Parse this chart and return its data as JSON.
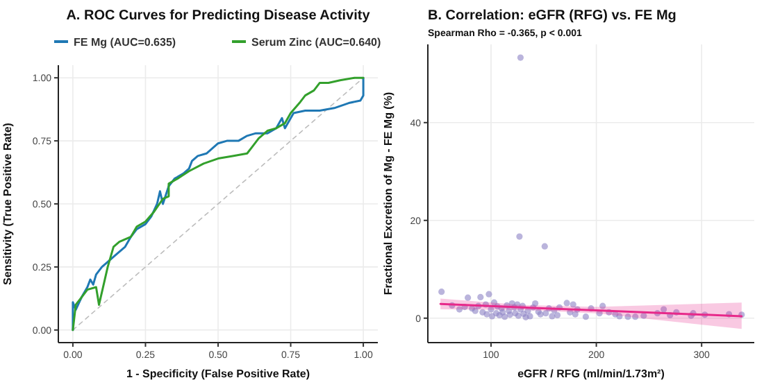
{
  "chart_data": [
    {
      "type": "line",
      "title": "A. ROC Curves for Predicting Disease Activity",
      "xlabel": "1 - Specificity (False Positive Rate)",
      "ylabel": "Sensitivity (True Positive Rate)",
      "xlim": [
        -0.05,
        1.05
      ],
      "ylim": [
        -0.05,
        1.05
      ],
      "xticks": [
        {
          "value": 0,
          "label": "0.00"
        },
        {
          "value": 0.25,
          "label": "0.25"
        },
        {
          "value": 0.5,
          "label": "0.50"
        },
        {
          "value": 0.75,
          "label": "0.75"
        },
        {
          "value": 1,
          "label": "1.00"
        }
      ],
      "yticks": [
        {
          "value": 0,
          "label": "0.00"
        },
        {
          "value": 0.25,
          "label": "0.25"
        },
        {
          "value": 0.5,
          "label": "0.50"
        },
        {
          "value": 0.75,
          "label": "0.75"
        },
        {
          "value": 1,
          "label": "1.00"
        }
      ],
      "grid": true,
      "legend": "top",
      "series": [
        {
          "type": "line",
          "color": "#bdbdbd",
          "line_style": "dashed",
          "x": [
            0,
            1
          ],
          "values": [
            0,
            1
          ]
        },
        {
          "name": "FE Mg (AUC=0.635)",
          "color": "#1f78b4",
          "x": [
            0,
            0,
            0.01,
            0.03,
            0.05,
            0.06,
            0.07,
            0.08,
            0.1,
            0.12,
            0.15,
            0.18,
            0.2,
            0.22,
            0.25,
            0.27,
            0.29,
            0.3,
            0.31,
            0.33,
            0.35,
            0.38,
            0.4,
            0.41,
            0.43,
            0.46,
            0.5,
            0.53,
            0.57,
            0.6,
            0.63,
            0.67,
            0.7,
            0.72,
            0.73,
            0.76,
            0.8,
            0.85,
            0.9,
            0.95,
            0.99,
            1,
            1
          ],
          "values": [
            0,
            0.11,
            0.08,
            0.13,
            0.17,
            0.2,
            0.18,
            0.22,
            0.25,
            0.27,
            0.3,
            0.33,
            0.37,
            0.4,
            0.42,
            0.45,
            0.5,
            0.55,
            0.5,
            0.57,
            0.6,
            0.62,
            0.64,
            0.67,
            0.69,
            0.7,
            0.74,
            0.75,
            0.75,
            0.77,
            0.78,
            0.78,
            0.8,
            0.84,
            0.8,
            0.86,
            0.87,
            0.87,
            0.88,
            0.9,
            0.91,
            0.93,
            1
          ]
        },
        {
          "name": "Serum Zinc (AUC=0.640)",
          "color": "#33a02c",
          "x": [
            0,
            0.01,
            0.03,
            0.05,
            0.08,
            0.09,
            0.11,
            0.12,
            0.14,
            0.16,
            0.2,
            0.22,
            0.25,
            0.28,
            0.31,
            0.33,
            0.33,
            0.36,
            0.4,
            0.45,
            0.5,
            0.55,
            0.6,
            0.62,
            0.64,
            0.67,
            0.7,
            0.73,
            0.75,
            0.78,
            0.8,
            0.83,
            0.85,
            0.88,
            0.92,
            0.97,
            1
          ],
          "values": [
            0,
            0.1,
            0.13,
            0.16,
            0.17,
            0.1,
            0.2,
            0.25,
            0.33,
            0.35,
            0.37,
            0.41,
            0.43,
            0.47,
            0.52,
            0.53,
            0.58,
            0.6,
            0.63,
            0.66,
            0.68,
            0.69,
            0.7,
            0.73,
            0.76,
            0.79,
            0.8,
            0.82,
            0.86,
            0.9,
            0.93,
            0.95,
            0.98,
            0.98,
            0.99,
            1,
            1
          ]
        }
      ]
    },
    {
      "type": "scatter",
      "title": "B. Correlation: eGFR (RFG) vs. FE Mg",
      "subtitle": "Spearman Rho = -0.365, p < 0.001",
      "xlabel": "eGFR / RFG (ml/min/1.73m²)",
      "ylabel": "Fractional Excretion of Mg - FE Mg (%)",
      "xlim": [
        40,
        350
      ],
      "ylim": [
        -5,
        56
      ],
      "xticks": [
        100,
        200,
        300
      ],
      "yticks": [
        0,
        20,
        40
      ],
      "grid": true,
      "series": [
        {
          "marker": "circle",
          "color": "#8c82c4",
          "x": [
            53,
            63,
            70,
            75,
            78,
            82,
            85,
            88,
            90,
            92,
            95,
            96,
            98,
            100,
            101,
            103,
            105,
            106,
            108,
            110,
            111,
            113,
            115,
            117,
            118,
            120,
            122,
            123,
            125,
            126,
            127,
            128,
            128,
            130,
            131,
            133,
            135,
            137,
            140,
            142,
            145,
            147,
            151,
            152,
            155,
            158,
            160,
            163,
            165,
            172,
            175,
            178,
            180,
            182,
            190,
            195,
            203,
            206,
            212,
            218,
            222,
            230,
            237,
            245,
            258,
            264,
            270,
            276,
            290,
            292,
            303,
            326,
            338
          ],
          "values": [
            5.4,
            2.6,
            1.8,
            2.3,
            4.2,
            2.0,
            1.5,
            2.5,
            4.3,
            1.2,
            2.8,
            0.8,
            4.9,
            1.8,
            0.4,
            3.2,
            1.0,
            2.4,
            0.6,
            2.0,
            1.2,
            0.3,
            2.6,
            1.5,
            0.7,
            3.0,
            2.2,
            1.0,
            2.8,
            0.5,
            16.7,
            53.3,
            1.8,
            2.5,
            0.9,
            0.2,
            1.5,
            0.4,
            2.2,
            3.0,
            1.3,
            0.8,
            14.7,
            1.0,
            2.0,
            0.4,
            1.6,
            0.6,
            2.2,
            3.1,
            1.2,
            2.8,
            0.8,
            1.8,
            0.3,
            2.0,
            1.0,
            2.5,
            1.2,
            0.8,
            0.4,
            0.3,
            0.3,
            0.5,
            1.0,
            1.8,
            0.6,
            1.2,
            0.5,
            1.0,
            0.7,
            0.8,
            0.7
          ]
        },
        {
          "type": "line",
          "color": "#e7298a",
          "x": [
            52,
            130,
            200,
            338
          ],
          "values": [
            2.9,
            2.2,
            1.6,
            0.4
          ],
          "lower": [
            1.8,
            1.7,
            1.0,
            -2.2
          ],
          "upper": [
            4.0,
            2.7,
            2.3,
            3.2
          ]
        }
      ]
    }
  ]
}
